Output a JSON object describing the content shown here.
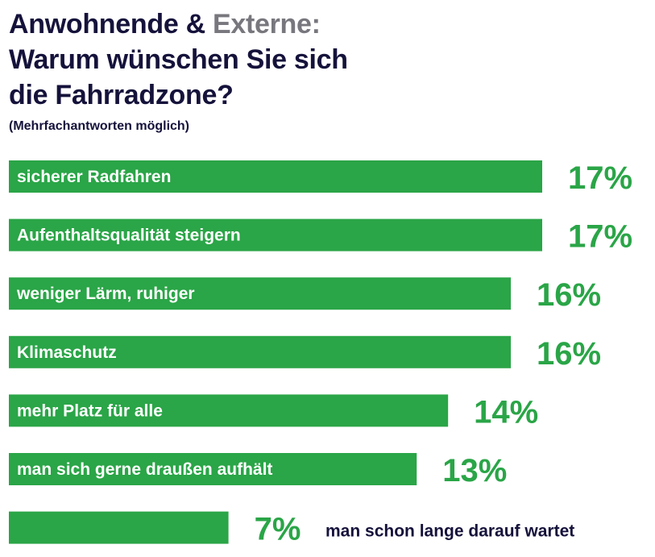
{
  "header": {
    "title_part1": "Anwohnende & ",
    "title_part2": "Externe:",
    "title_line2": "Warum wünschen Sie sich",
    "title_line3": "die Fahrradzone?",
    "subtitle": "(Mehrfachantworten möglich)"
  },
  "colors": {
    "bar": "#2aa547",
    "value_label": "#2aa547",
    "title": "#15123b",
    "title_accent_grey": "#77777d",
    "bar_text": "#ffffff"
  },
  "chart_data": {
    "type": "bar",
    "orientation": "horizontal",
    "title": "Anwohnende & Externe: Warum wünschen Sie sich die Fahrradzone?",
    "subtitle": "(Mehrfachantworten möglich)",
    "unit": "%",
    "categories": [
      "sicherer Radfahren",
      "Aufenthaltsqualität steigern",
      "weniger Lärm, ruhiger",
      "Klimaschutz",
      "mehr Platz für alle",
      "man sich gerne draußen aufhält",
      "man schon lange darauf wartet"
    ],
    "values": [
      17,
      17,
      16,
      16,
      14,
      13,
      7
    ],
    "value_labels": [
      "17%",
      "17%",
      "16%",
      "16%",
      "14%",
      "13%",
      "7%"
    ],
    "xlim": [
      0,
      17
    ],
    "grid": false,
    "legend": "none",
    "xlabel": "",
    "ylabel": ""
  }
}
